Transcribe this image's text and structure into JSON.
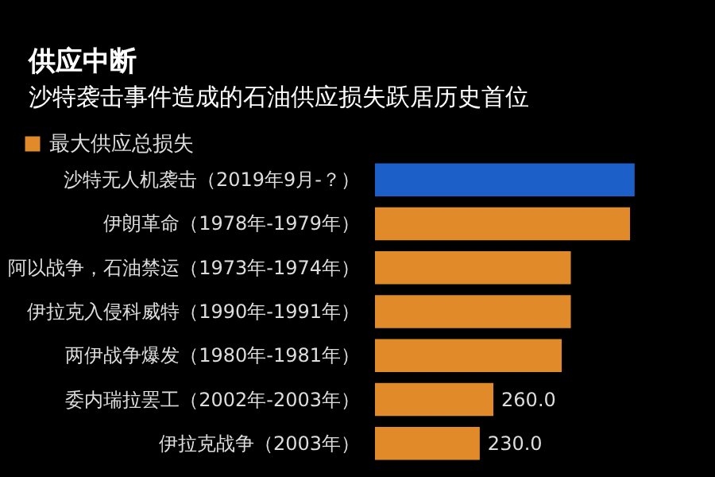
{
  "chart_data": {
    "type": "bar",
    "orientation": "horizontal",
    "title": "供应中断",
    "subtitle": "沙特袭击事件造成的石油供应损失跃居历史首位",
    "categories": [
      "沙特无人机袭击（2019年9月-？）",
      "伊朗革命（1978年-1979年）",
      "阿以战争，石油禁运（1973年-1974年）",
      "伊拉克入侵科威特（1990年-1991年）",
      "两伊战争爆发（1980年-1981年）",
      "委内瑞拉罢工（2002年-2003年）",
      "伊拉克战争（2003年）"
    ],
    "series": [
      {
        "color": "#1c5fc9",
        "values": [
          570,
          null,
          null,
          null,
          null,
          null,
          null
        ]
      },
      {
        "name": "最大供应总损失",
        "color": "#e08a2a",
        "values": [
          null,
          560,
          430,
          430,
          410,
          260,
          230
        ],
        "value_labels": [
          null,
          null,
          null,
          null,
          null,
          "260.0",
          "230.0"
        ]
      }
    ],
    "xlim": [
      0,
      600
    ],
    "legend": "top left"
  }
}
